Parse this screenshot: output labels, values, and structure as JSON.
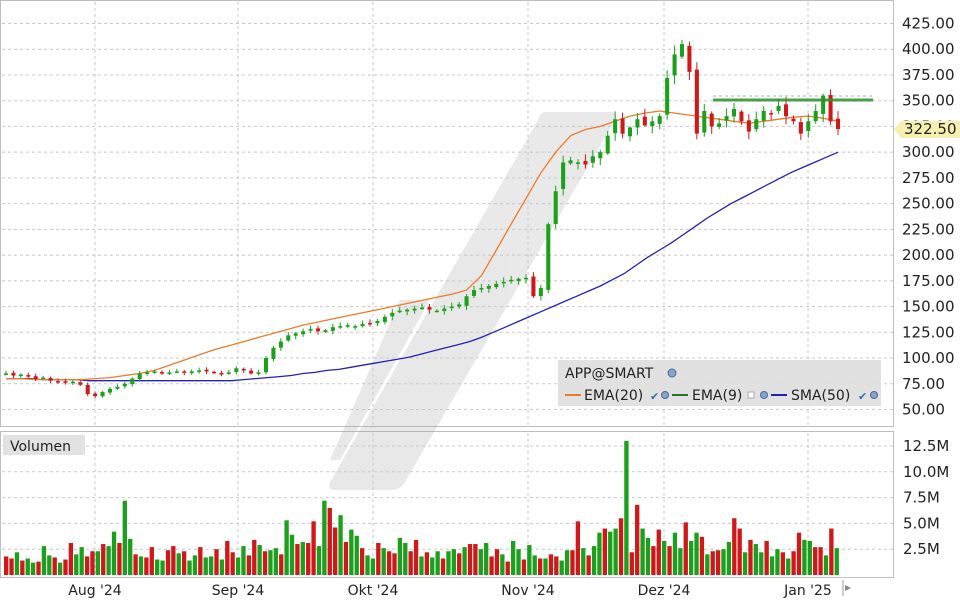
{
  "price_panel": {
    "instrument": "APP@SMART",
    "last_price_label": "322.50",
    "legend": [
      {
        "label": "EMA(20)",
        "color": "#f07a2a"
      },
      {
        "label": "EMA(9)",
        "color": "#2c6e2c"
      },
      {
        "label": "SMA(50)",
        "color": "#2222bb"
      }
    ],
    "y_ticks": [
      "425.00",
      "400.00",
      "375.00",
      "350.00",
      "325.00",
      "300.00",
      "275.00",
      "250.00",
      "225.00",
      "200.00",
      "175.00",
      "150.00",
      "125.00",
      "100.00",
      "75.00",
      "50.00"
    ]
  },
  "volume_panel": {
    "title": "Volumen",
    "y_ticks": [
      "12.5M",
      "10.0M",
      "7.5M",
      "5.0M",
      "2.5M"
    ]
  },
  "x_axis": {
    "month_labels": [
      "Aug '24",
      "Sep '24",
      "Okt '24",
      "Nov '24",
      "Dez '24",
      "Jan '25"
    ]
  },
  "colors": {
    "up": "#1aa01a",
    "down": "#d01818",
    "grid": "#c8c8c8",
    "legend_bg": "#dedede"
  },
  "chart_data": [
    {
      "type": "candlestick",
      "title": "",
      "xlabel": "",
      "ylabel": "",
      "ylim": [
        30,
        435
      ],
      "grid": true,
      "legend_position": "bottom-right",
      "ohlc_close_values_approx": [
        85,
        83,
        84,
        82,
        80,
        81,
        78,
        77,
        76,
        77,
        74,
        65,
        63,
        67,
        70,
        72,
        75,
        80,
        85,
        86,
        87,
        86,
        86,
        87,
        86,
        87,
        88,
        87,
        86,
        85,
        86,
        90,
        88,
        85,
        86,
        100,
        110,
        116,
        122,
        124,
        126,
        128,
        126,
        127,
        130,
        131,
        132,
        131,
        133,
        134,
        136,
        140,
        144,
        146,
        147,
        148,
        149,
        147,
        146,
        148,
        150,
        152,
        160,
        166,
        168,
        170,
        172,
        174,
        176,
        177,
        178,
        160,
        168,
        230,
        262,
        290,
        292,
        290,
        288,
        296,
        300,
        316,
        332,
        318,
        324,
        332,
        326,
        330,
        335,
        372,
        395,
        405,
        378,
        318,
        340,
        325,
        328,
        335,
        342,
        330,
        320,
        332,
        340,
        338,
        345,
        335,
        330,
        318,
        330,
        340,
        355,
        330,
        322.5
      ],
      "sma50_approx": [
        80,
        80,
        80,
        79,
        79,
        79,
        79,
        78,
        78,
        78,
        78,
        78,
        78,
        78,
        78,
        78,
        78,
        78,
        78,
        78,
        79,
        80,
        81,
        82,
        83,
        85,
        86,
        88,
        89,
        91,
        93,
        95,
        97,
        99,
        101,
        104,
        107,
        110,
        113,
        116,
        120,
        125,
        130,
        135,
        140,
        145,
        150,
        155,
        160,
        165,
        170,
        176,
        182,
        190,
        198,
        205,
        212,
        220,
        228,
        236,
        243,
        250,
        256,
        262,
        268,
        274,
        280,
        285,
        290,
        295,
        300
      ],
      "ema20_approx": [
        80,
        80,
        79,
        79,
        79,
        79,
        80,
        81,
        83,
        85,
        88,
        93,
        98,
        103,
        108,
        112,
        116,
        120,
        124,
        128,
        132,
        135,
        138,
        141,
        144,
        147,
        150,
        153,
        156,
        159,
        162,
        166,
        180,
        205,
        230,
        255,
        280,
        300,
        316,
        322,
        325,
        330,
        335,
        338,
        340,
        338,
        336,
        334,
        332,
        330,
        328,
        330,
        332,
        334,
        335,
        333,
        330
      ]
    },
    {
      "type": "bar",
      "title": "Volumen",
      "ylim": [
        0,
        13500000
      ],
      "volume_values_millions_approx": [
        1.8,
        1.6,
        2.2,
        1.4,
        1.6,
        1.2,
        1.3,
        2.8,
        1.9,
        1.7,
        1.2,
        1.5,
        3.1,
        2.0,
        2.7,
        1.8,
        2.3,
        2.3,
        3.0,
        2.8,
        4.2,
        3.1,
        7.2,
        3.5,
        2.0,
        1.8,
        1.7,
        2.7,
        1.5,
        1.4,
        2.4,
        2.8,
        2.1,
        2.3,
        1.4,
        1.9,
        2.7,
        1.7,
        1.8,
        2.5,
        1.5,
        3.3,
        2.2,
        1.7,
        2.8,
        1.9,
        3.4,
        2.9,
        2.3,
        2.4,
        2.6,
        2.0,
        5.3,
        3.9,
        3.0,
        3.2,
        3.1,
        5.2,
        2.8,
        7.2,
        6.5,
        4.6,
        5.8,
        3.2,
        4.4,
        3.8,
        2.6,
        1.9,
        1.6,
        3.1,
        2.6,
        2.3,
        2.1,
        3.6,
        3.1,
        2.3,
        3.4,
        1.8,
        2.2,
        1.7,
        2.3,
        1.6,
        2.3,
        2.5,
        2.1,
        2.7,
        3.0,
        3.0,
        2.5,
        3.1,
        1.8,
        2.5,
        2.0,
        1.3,
        3.3,
        2.5,
        1.5,
        2.9,
        1.9,
        1.6,
        1.6,
        2.0,
        1.8,
        1.4,
        2.4,
        2.4,
        5.2,
        2.6,
        1.9,
        2.8,
        4.1,
        4.5,
        4.2,
        4.5,
        5.5,
        13.0,
        2.2,
        6.8,
        4.5,
        3.6,
        2.8,
        4.4,
        3.3,
        2.8,
        4.1,
        2.6,
        5.1,
        3.3,
        4.1,
        3.7,
        2.0,
        2.3,
        2.4,
        2.5,
        3.2,
        5.5,
        4.5,
        2.2,
        3.4,
        3.0,
        2.2,
        3.3,
        1.8,
        2.5,
        2.2,
        1.6,
        2.3,
        4.1,
        3.4,
        3.3,
        2.7,
        2.7,
        1.9,
        4.5,
        2.6
      ]
    }
  ]
}
